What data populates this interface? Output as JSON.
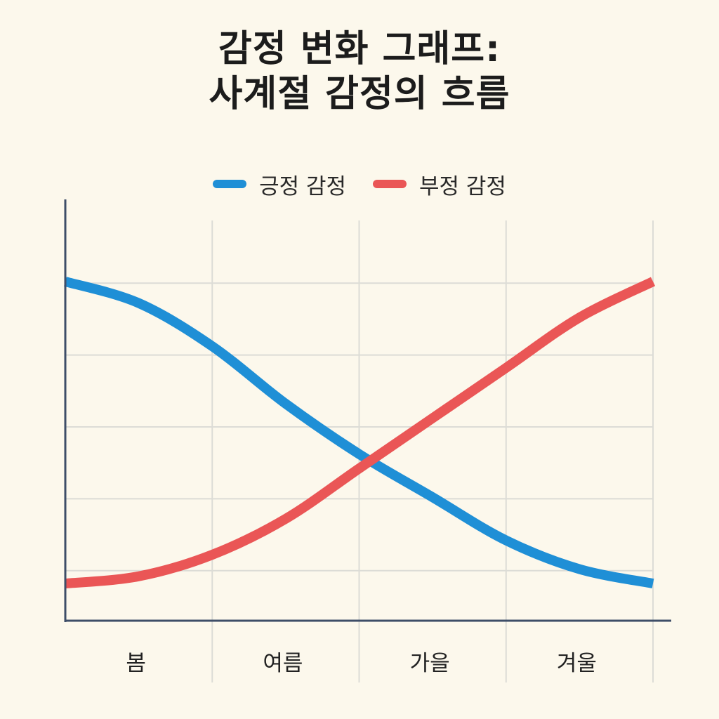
{
  "chart_data": {
    "type": "line",
    "title_lines": [
      "감정 변화 그래프:",
      "사계절 감정의 흐름"
    ],
    "categories": [
      "봄",
      "여름",
      "가을",
      "겨울"
    ],
    "x_range": [
      0,
      4
    ],
    "ylim": [
      0,
      5
    ],
    "grid": true,
    "legend_position": "top-center",
    "xlabel": "",
    "ylabel": "",
    "series": [
      {
        "name": "긍정 감정",
        "color": "#1f8fd6",
        "points": [
          [
            0,
            4.6
          ],
          [
            0.5,
            4.3
          ],
          [
            1,
            3.7
          ],
          [
            1.5,
            2.9
          ],
          [
            2,
            2.2
          ],
          [
            2.5,
            1.6
          ],
          [
            3,
            1.0
          ],
          [
            3.5,
            0.6
          ],
          [
            4,
            0.4
          ]
        ]
      },
      {
        "name": "부정 감정",
        "color": "#ea5656",
        "points": [
          [
            0,
            0.4
          ],
          [
            0.5,
            0.5
          ],
          [
            1,
            0.8
          ],
          [
            1.5,
            1.3
          ],
          [
            2,
            2.0
          ],
          [
            2.5,
            2.7
          ],
          [
            3,
            3.4
          ],
          [
            3.5,
            4.1
          ],
          [
            4,
            4.6
          ]
        ]
      }
    ]
  },
  "colors": {
    "background": "#fcf8ec",
    "axis": "#3e4e68",
    "grid": "#dcdcd6"
  }
}
